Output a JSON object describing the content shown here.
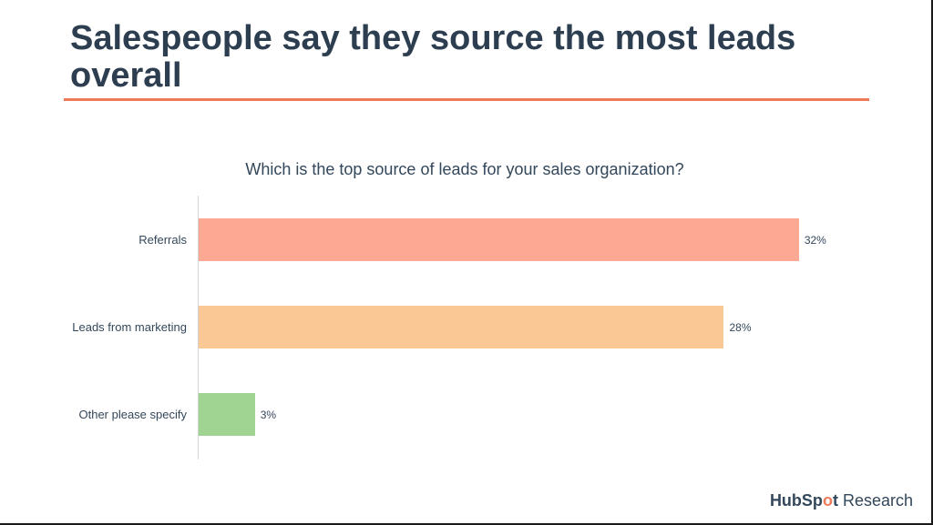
{
  "slide": {
    "title": "Salespeople say they source the most leads overall",
    "accent_color": "#f0795a",
    "title_color": "#2d3e50"
  },
  "chart_data": {
    "type": "bar",
    "orientation": "horizontal",
    "title": "Which is the top source of leads for your sales organization?",
    "categories": [
      "Referrals",
      "Leads from marketing",
      "Other please specify"
    ],
    "values": [
      32,
      28,
      3
    ],
    "value_labels": [
      "32%",
      "28%",
      "3%"
    ],
    "colors": [
      "#fca892",
      "#f9c894",
      "#a0d493"
    ],
    "unit": "%",
    "xlim": [
      0,
      34
    ],
    "grid": false,
    "legend": "none"
  },
  "footer": {
    "brand_prefix": "HubSp",
    "brand_mark": "o",
    "brand_suffix": "t",
    "brand_tag": "Research"
  }
}
